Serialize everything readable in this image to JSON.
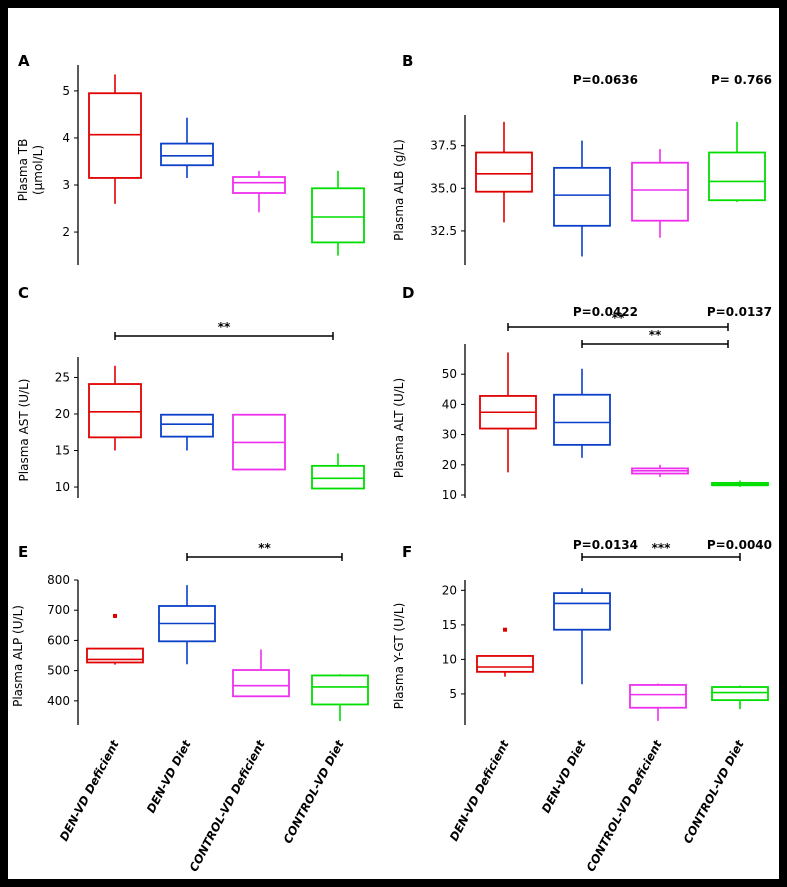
{
  "categories": [
    "DEN-VD Deficient",
    "DEN-VD Diet",
    "CONTROL-VD Deficient",
    "CONTROL-VD Diet"
  ],
  "colors": [
    "#e00000",
    "#0a3fc9",
    "#ee30ee",
    "#00dd00"
  ],
  "chart_data": [
    {
      "type": "box",
      "panel": "A",
      "ylabel": "Plasma TB\n(μmol/L)",
      "pvalue": "P=0.0636",
      "ylim": [
        1.3,
        5.55
      ],
      "yticks": [
        2,
        3,
        4,
        5
      ],
      "yticklabels": [
        "2",
        "3",
        "4",
        "5"
      ],
      "series": [
        {
          "whisker_low": 2.6,
          "q1": 3.15,
          "median": 4.07,
          "q3": 4.95,
          "whisker_high": 5.35
        },
        {
          "whisker_low": 3.15,
          "q1": 3.42,
          "median": 3.62,
          "q3": 3.88,
          "whisker_high": 4.43
        },
        {
          "whisker_low": 2.42,
          "q1": 2.83,
          "median": 3.05,
          "q3": 3.17,
          "whisker_high": 3.3
        },
        {
          "whisker_low": 1.5,
          "q1": 1.78,
          "median": 2.32,
          "q3": 2.93,
          "whisker_high": 3.3
        }
      ],
      "outliers": [],
      "brackets": []
    },
    {
      "type": "box",
      "panel": "B",
      "ylabel": "Plasma ALB (g/L)",
      "pvalue": "P= 0.766",
      "ylim": [
        30.5,
        39.3
      ],
      "yticks": [
        32.5,
        35.0,
        37.5
      ],
      "yticklabels": [
        "32.5",
        "35.0",
        "37.5"
      ],
      "series": [
        {
          "whisker_low": 33.0,
          "q1": 34.8,
          "median": 35.85,
          "q3": 37.1,
          "whisker_high": 38.9
        },
        {
          "whisker_low": 31.0,
          "q1": 32.8,
          "median": 34.6,
          "q3": 36.2,
          "whisker_high": 37.8
        },
        {
          "whisker_low": 32.1,
          "q1": 33.1,
          "median": 34.9,
          "q3": 36.5,
          "whisker_high": 37.3
        },
        {
          "whisker_low": 34.2,
          "q1": 34.3,
          "median": 35.4,
          "q3": 37.1,
          "whisker_high": 38.9
        }
      ],
      "outliers": [],
      "brackets": []
    },
    {
      "type": "box",
      "panel": "C",
      "ylabel": "Plasma  AST (U/L)",
      "pvalue": "P=0.0422",
      "ylim": [
        8.5,
        27.8
      ],
      "yticks": [
        10,
        15,
        20,
        25
      ],
      "yticklabels": [
        "10",
        "15",
        "20",
        "25"
      ],
      "series": [
        {
          "whisker_low": 15.0,
          "q1": 16.8,
          "median": 20.3,
          "q3": 24.1,
          "whisker_high": 26.6
        },
        {
          "whisker_low": 15.0,
          "q1": 16.9,
          "median": 18.6,
          "q3": 19.9,
          "whisker_high": 19.9
        },
        {
          "whisker_low": 12.4,
          "q1": 12.4,
          "median": 16.1,
          "q3": 19.9,
          "whisker_high": 19.9
        },
        {
          "whisker_low": 9.8,
          "q1": 9.8,
          "median": 11.2,
          "q3": 12.9,
          "whisker_high": 14.6
        }
      ],
      "outliers": [],
      "brackets": [
        {
          "from": 0,
          "to": 3,
          "label": "**",
          "level": 0
        }
      ]
    },
    {
      "type": "box",
      "panel": "D",
      "ylabel": "Plasma ALT (U/L)",
      "pvalue": "P=0.0137",
      "ylim": [
        9,
        60
      ],
      "yticks": [
        10,
        20,
        30,
        40,
        50
      ],
      "yticklabels": [
        "10",
        "20",
        "30",
        "40",
        "50"
      ],
      "series": [
        {
          "whisker_low": 17.5,
          "q1": 32.0,
          "median": 37.4,
          "q3": 42.8,
          "whisker_high": 57.2
        },
        {
          "whisker_low": 22.3,
          "q1": 26.6,
          "median": 34.0,
          "q3": 43.2,
          "whisker_high": 51.8
        },
        {
          "whisker_low": 16.0,
          "q1": 17.1,
          "median": 18.0,
          "q3": 18.8,
          "whisker_high": 20.0
        },
        {
          "whisker_low": 12.7,
          "q1": 13.2,
          "median": 13.5,
          "q3": 14.0,
          "whisker_high": 14.8
        }
      ],
      "outliers": [],
      "brackets": [
        {
          "from": 0,
          "to": 3,
          "label": "**",
          "level": 0
        },
        {
          "from": 1,
          "to": 3,
          "label": "**",
          "level": 1
        }
      ]
    },
    {
      "type": "box",
      "panel": "E",
      "ylabel": "Plasma ALP (U/L)",
      "pvalue": "P=0.0134",
      "ylim": [
        320,
        800
      ],
      "yticks": [
        400,
        500,
        600,
        700,
        800
      ],
      "yticklabels": [
        "400",
        "500",
        "600",
        "700",
        "800"
      ],
      "series": [
        {
          "whisker_low": 520,
          "q1": 527,
          "median": 537,
          "q3": 573,
          "whisker_high": 573
        },
        {
          "whisker_low": 521,
          "q1": 597,
          "median": 656,
          "q3": 714,
          "whisker_high": 783
        },
        {
          "whisker_low": 413,
          "q1": 415,
          "median": 450,
          "q3": 502,
          "whisker_high": 570
        },
        {
          "whisker_low": 333,
          "q1": 388,
          "median": 446,
          "q3": 484,
          "whisker_high": 488
        }
      ],
      "outliers": [
        {
          "series": 0,
          "value": 681
        }
      ],
      "brackets": [
        {
          "from": 1,
          "to": 3,
          "label": "**",
          "level": 0
        }
      ]
    },
    {
      "type": "box",
      "panel": "F",
      "ylabel": "Plasma Y-GT (U/L)",
      "pvalue": "P=0.0040",
      "ylim": [
        0.5,
        21.5
      ],
      "yticks": [
        5,
        10,
        15,
        20
      ],
      "yticklabels": [
        "5",
        "10",
        "15",
        "20"
      ],
      "series": [
        {
          "whisker_low": 7.5,
          "q1": 8.2,
          "median": 8.9,
          "q3": 10.5,
          "whisker_high": 10.5
        },
        {
          "whisker_low": 6.4,
          "q1": 14.3,
          "median": 18.1,
          "q3": 19.6,
          "whisker_high": 20.3
        },
        {
          "whisker_low": 1.1,
          "q1": 3.0,
          "median": 4.9,
          "q3": 6.3,
          "whisker_high": 6.5
        },
        {
          "whisker_low": 2.8,
          "q1": 4.1,
          "median": 5.2,
          "q3": 6.0,
          "whisker_high": 6.2
        }
      ],
      "outliers": [
        {
          "series": 0,
          "value": 14.3
        }
      ],
      "brackets": [
        {
          "from": 1,
          "to": 3,
          "label": "***",
          "level": 0
        }
      ]
    }
  ]
}
